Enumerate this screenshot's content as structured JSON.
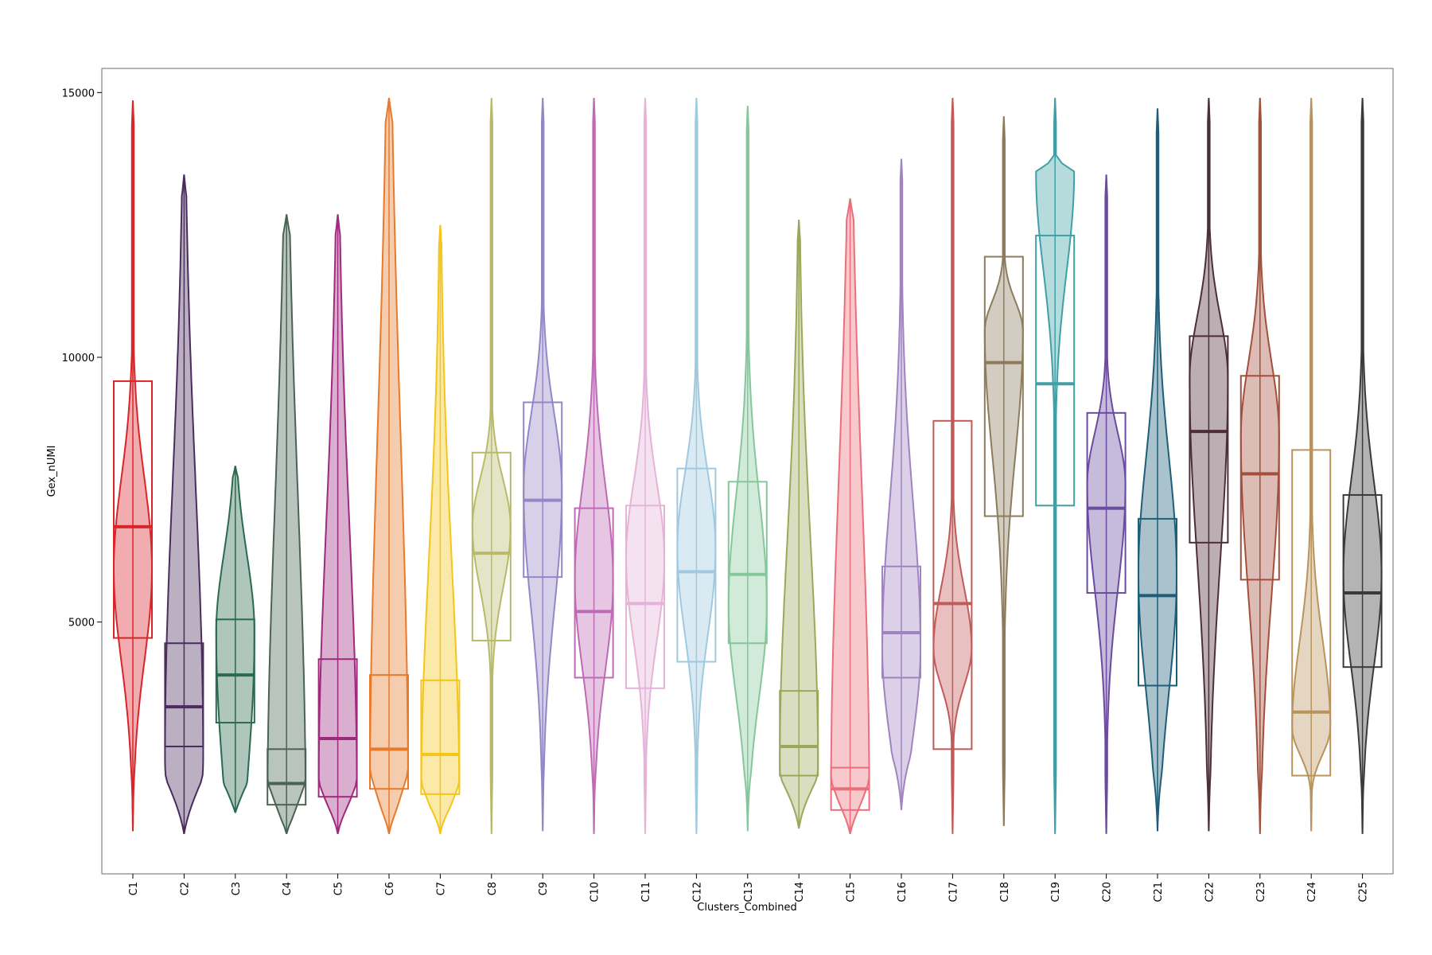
{
  "chart_data": {
    "type": "violin",
    "xlabel": "Clusters_Combined",
    "ylabel": "Gex_nUMI",
    "ylim": [
      0,
      15000
    ],
    "yticks": [
      5000,
      10000,
      15000
    ],
    "grid": false,
    "legend": "none",
    "categories": [
      "C1",
      "C2",
      "C3",
      "C4",
      "C5",
      "C6",
      "C7",
      "C8",
      "C9",
      "C10",
      "C11",
      "C12",
      "C13",
      "C14",
      "C15",
      "C16",
      "C17",
      "C18",
      "C19",
      "C20",
      "C21",
      "C22",
      "C23",
      "C24",
      "C25"
    ],
    "series": [
      {
        "color": "#D7262B",
        "min": 1050,
        "q1": 4700,
        "median": 6800,
        "q3": 9550,
        "max": 14850,
        "mode": 6000,
        "spread": 0.35
      },
      {
        "color": "#4B2C5E",
        "min": 1000,
        "q1": 2650,
        "median": 3400,
        "q3": 4600,
        "max": 13450,
        "mode": 2400,
        "spread": 0.85
      },
      {
        "color": "#2A6A50",
        "min": 1400,
        "q1": 3100,
        "median": 4000,
        "q3": 5050,
        "max": 7950,
        "mode": 4800,
        "spread": 0.85
      },
      {
        "color": "#4A6354",
        "min": 1000,
        "q1": 1550,
        "median": 1950,
        "q3": 2600,
        "max": 12700,
        "mode": 1300,
        "spread": 0.95
      },
      {
        "color": "#9E2A7E",
        "min": 1000,
        "q1": 1700,
        "median": 2800,
        "q3": 4300,
        "max": 12700,
        "mode": 1700,
        "spread": 0.85
      },
      {
        "color": "#E87A2C",
        "min": 1000,
        "q1": 1850,
        "median": 2600,
        "q3": 4000,
        "max": 14900,
        "mode": 1550,
        "spread": 0.95
      },
      {
        "color": "#F5C518",
        "min": 1000,
        "q1": 1750,
        "median": 2500,
        "q3": 3900,
        "max": 12500,
        "mode": 1600,
        "spread": 0.75
      },
      {
        "color": "#B8BA6A",
        "min": 1000,
        "q1": 4650,
        "median": 6300,
        "q3": 8200,
        "max": 14900,
        "mode": 6800,
        "spread": 0.2
      },
      {
        "color": "#9487C6",
        "min": 1050,
        "q1": 5850,
        "median": 7300,
        "q3": 9150,
        "max": 14900,
        "mode": 7500,
        "spread": 0.35
      },
      {
        "color": "#BE6AB4",
        "min": 1000,
        "q1": 3950,
        "median": 5200,
        "q3": 7150,
        "max": 14900,
        "mode": 5800,
        "spread": 0.35
      },
      {
        "color": "#E5B3D8",
        "min": 1000,
        "q1": 3750,
        "median": 5350,
        "q3": 7200,
        "max": 14900,
        "mode": 6200,
        "spread": 0.3
      },
      {
        "color": "#9EC9E0",
        "min": 1000,
        "q1": 4250,
        "median": 5950,
        "q3": 7900,
        "max": 14900,
        "mode": 6400,
        "spread": 0.3
      },
      {
        "color": "#85C79B",
        "min": 1050,
        "q1": 4600,
        "median": 5900,
        "q3": 7650,
        "max": 14750,
        "mode": 5300,
        "spread": 0.4
      },
      {
        "color": "#9AA85A",
        "min": 1100,
        "q1": 2100,
        "median": 2650,
        "q3": 3700,
        "max": 12600,
        "mode": 2300,
        "spread": 0.75
      },
      {
        "color": "#EB6F7A",
        "min": 1000,
        "q1": 1450,
        "median": 1850,
        "q3": 2250,
        "max": 13000,
        "mode": 1700,
        "spread": 0.95
      },
      {
        "color": "#A084C1",
        "min": 1450,
        "q1": 3950,
        "median": 4800,
        "q3": 6050,
        "max": 13750,
        "mode": 4500,
        "spread": 0.55
      },
      {
        "color": "#C25A58",
        "min": 1000,
        "q1": 2600,
        "median": 5350,
        "q3": 8800,
        "max": 14900,
        "mode": 4500,
        "spread": 0.2
      },
      {
        "color": "#8C7B5C",
        "min": 1150,
        "q1": 7000,
        "median": 9900,
        "q3": 11900,
        "max": 14550,
        "mode": 10500,
        "spread": 0.25
      },
      {
        "color": "#3FA0A6",
        "min": 1000,
        "q1": 7200,
        "median": 9500,
        "q3": 12300,
        "max": 14900,
        "mode": 13500,
        "spread": 0.15
      },
      {
        "color": "#6A4BA0",
        "min": 1000,
        "q1": 5550,
        "median": 7150,
        "q3": 8950,
        "max": 13450,
        "mode": 7600,
        "spread": 0.3
      },
      {
        "color": "#1D5E78",
        "min": 1050,
        "q1": 3800,
        "median": 5500,
        "q3": 6950,
        "max": 14700,
        "mode": 5900,
        "spread": 0.45
      },
      {
        "color": "#4E2E36",
        "min": 1050,
        "q1": 6500,
        "median": 8600,
        "q3": 10400,
        "max": 14900,
        "mode": 9600,
        "spread": 0.4
      },
      {
        "color": "#A34F3C",
        "min": 1000,
        "q1": 5800,
        "median": 7800,
        "q3": 9650,
        "max": 14900,
        "mode": 8500,
        "spread": 0.4
      },
      {
        "color": "#B8945C",
        "min": 1050,
        "q1": 2100,
        "median": 3300,
        "q3": 8250,
        "max": 14900,
        "mode": 3000,
        "spread": 0.25
      },
      {
        "color": "#3A3A3A",
        "min": 1000,
        "q1": 4150,
        "median": 5550,
        "q3": 7400,
        "max": 14900,
        "mode": 5900,
        "spread": 0.35
      }
    ]
  }
}
